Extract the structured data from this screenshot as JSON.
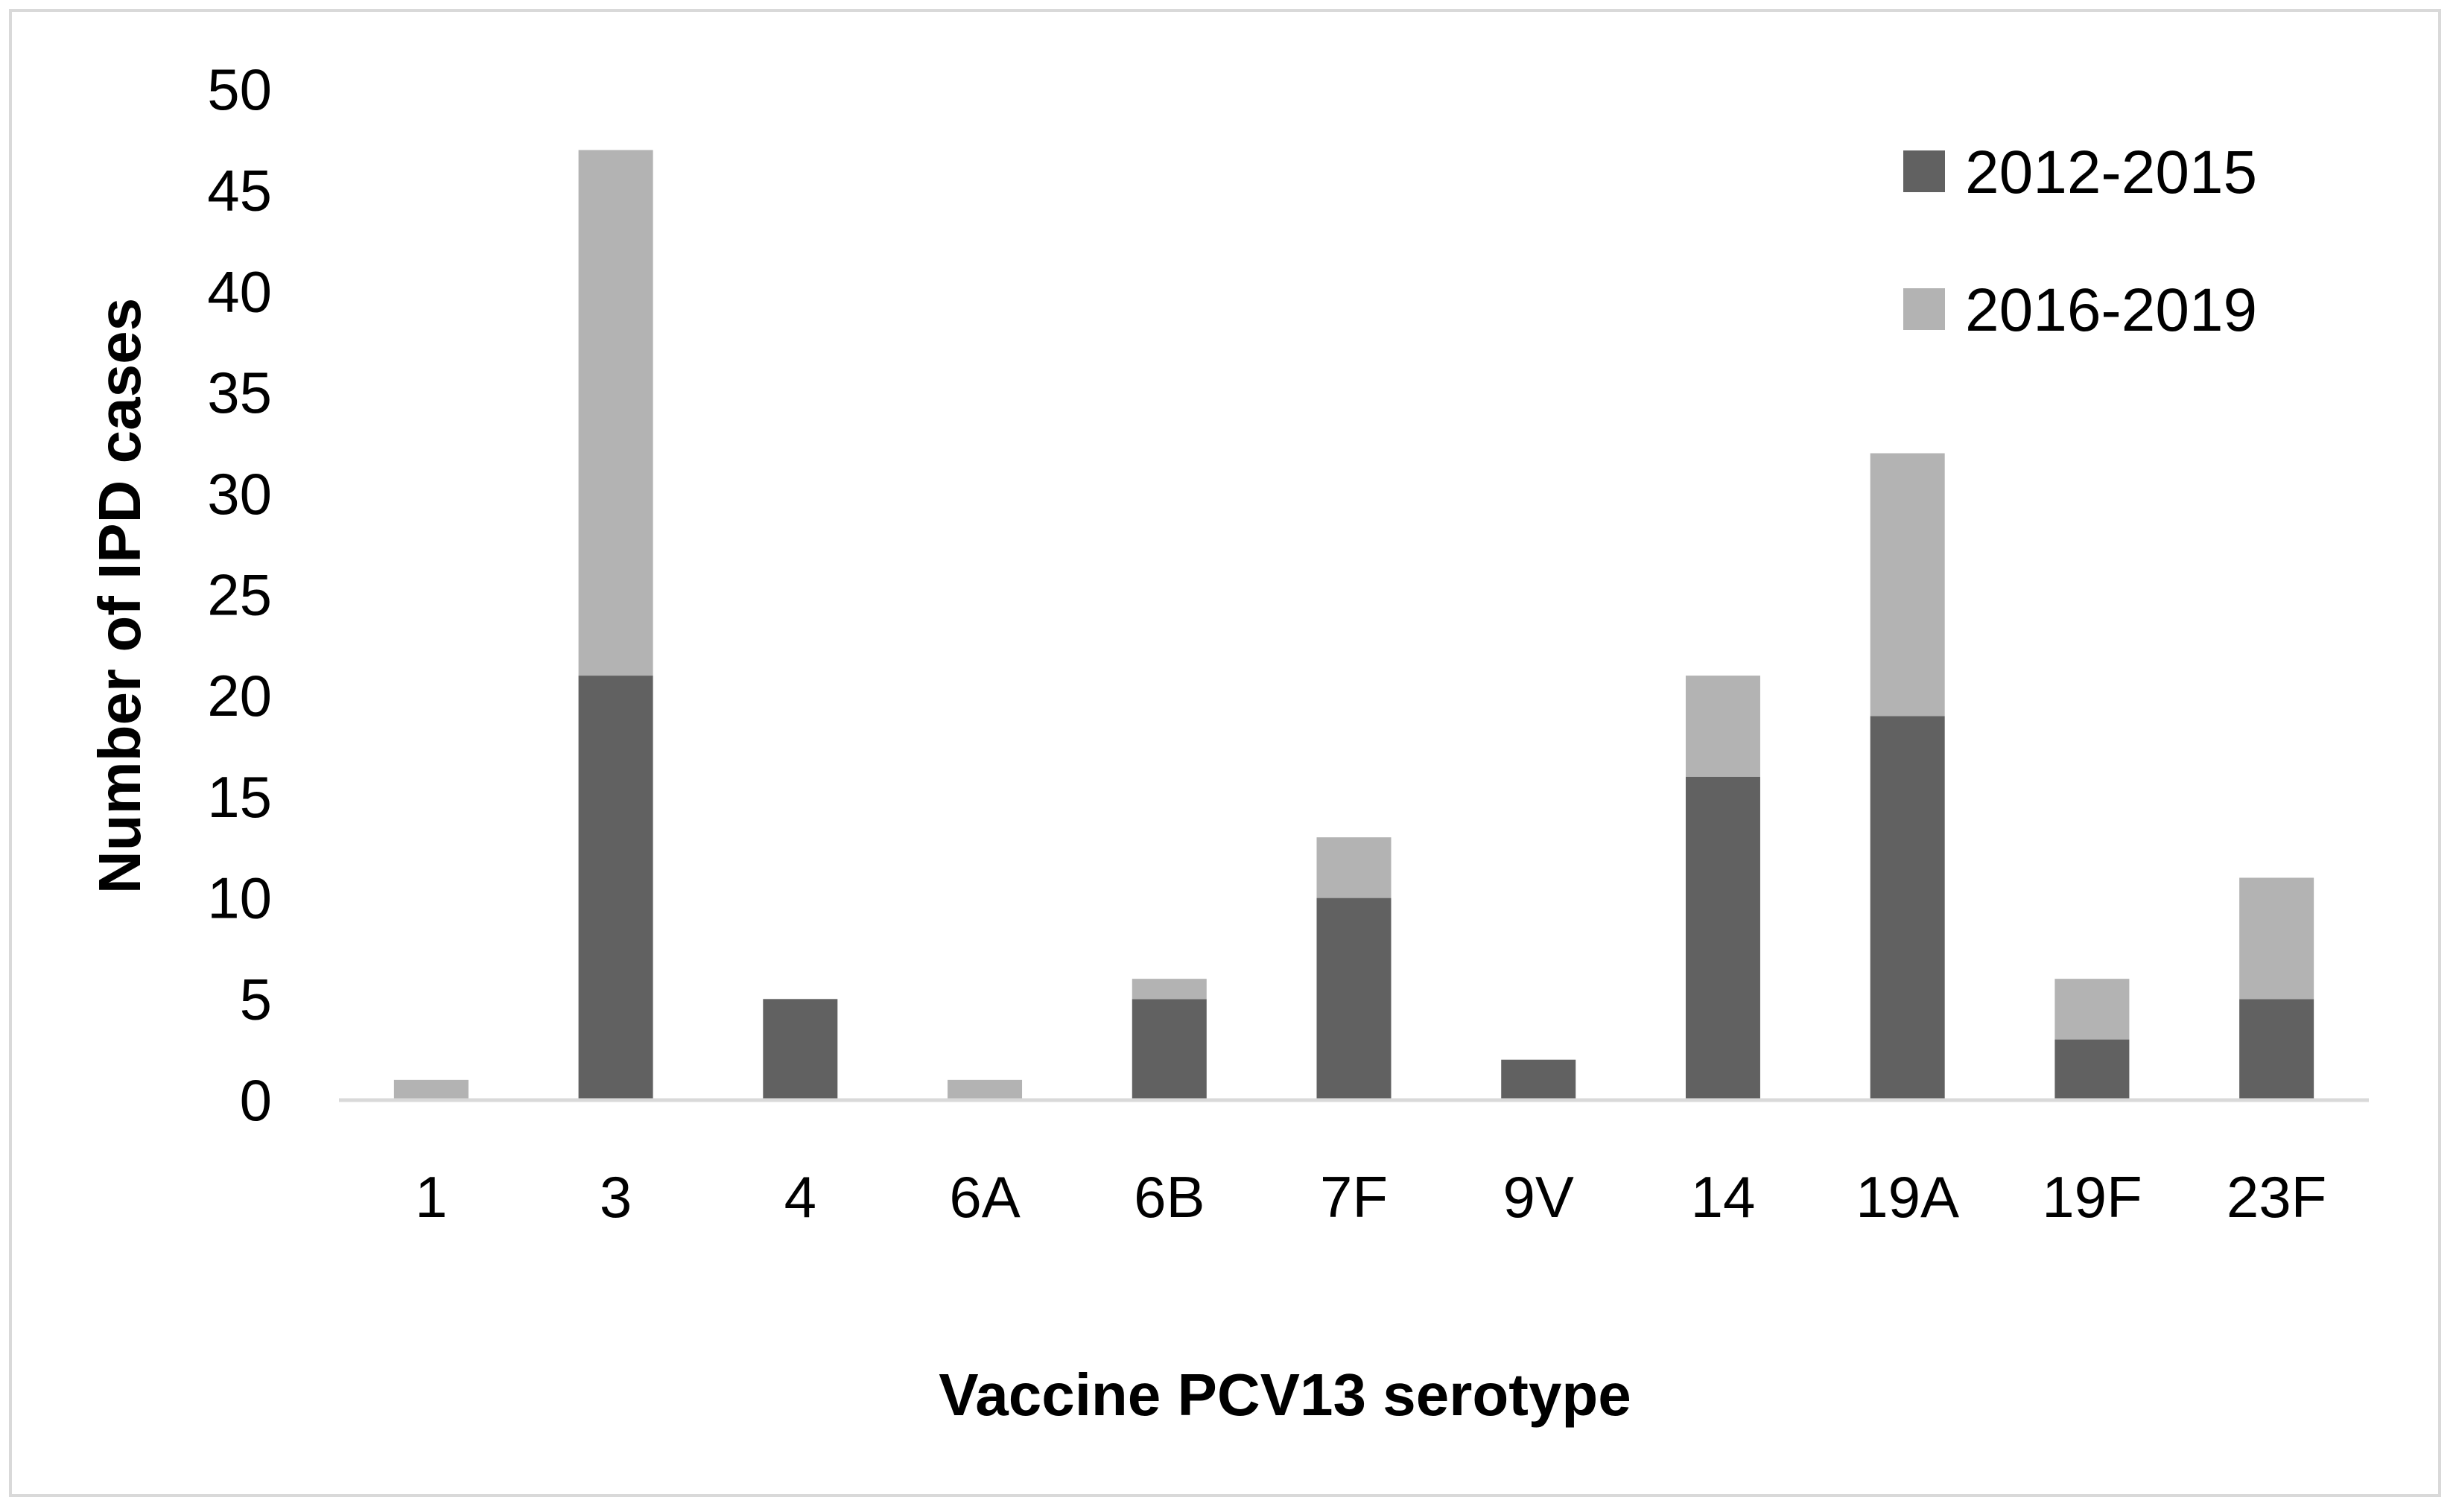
{
  "chart_data": {
    "type": "bar",
    "stacked": true,
    "title": "",
    "xlabel": "Vaccine PCV13 serotype",
    "ylabel": "Number of IPD cases",
    "ylim": [
      0,
      50
    ],
    "yticks": [
      0,
      5,
      10,
      15,
      20,
      25,
      30,
      35,
      40,
      45,
      50
    ],
    "categories": [
      "1",
      "3",
      "4",
      "6A",
      "6B",
      "7F",
      "9V",
      "14",
      "19A",
      "19F",
      "23F"
    ],
    "series": [
      {
        "name": "2012-2015",
        "color": "#616161",
        "values": [
          0,
          21,
          5,
          0,
          5,
          10,
          2,
          16,
          19,
          3,
          5
        ]
      },
      {
        "name": "2016-2019",
        "color": "#b3b3b3",
        "values": [
          1,
          26,
          0,
          1,
          1,
          3,
          0,
          5,
          13,
          3,
          6
        ]
      }
    ],
    "grid": false,
    "legend_position": "top-right"
  }
}
